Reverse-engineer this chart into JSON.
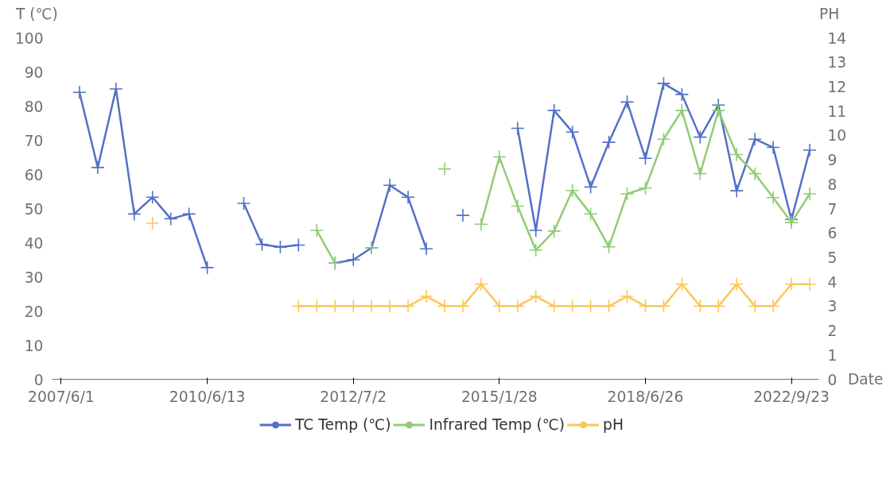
{
  "chart_data": {
    "type": "line",
    "xlabel": "Date",
    "ylabel": "T (℃)",
    "y2label": "PH",
    "categories": [
      "2007/6/1",
      null,
      null,
      null,
      null,
      null,
      null,
      null,
      "2010/6/13",
      null,
      null,
      null,
      null,
      null,
      null,
      null,
      "2012/7/2",
      null,
      null,
      null,
      null,
      null,
      null,
      null,
      "2015/1/28",
      null,
      null,
      null,
      null,
      null,
      null,
      null,
      "2018/6/26",
      null,
      null,
      null,
      null,
      null,
      null,
      null,
      "2022/9/23",
      null
    ],
    "series": [
      {
        "name": "TC Temp (℃)",
        "color": "#5470c6",
        "values": [
          null,
          84,
          62,
          85,
          48.4,
          53.3,
          47,
          48.4,
          32.7,
          null,
          51.5,
          39.5,
          38.7,
          39.3,
          null,
          34,
          35,
          38.5,
          56.8,
          53.3,
          38.2,
          null,
          48,
          null,
          null,
          73.5,
          43.6,
          78.7,
          72.4,
          56.3,
          69.4,
          81.2,
          64.7,
          86.6,
          83.4,
          70.9,
          80.3,
          55.2,
          70.3,
          67.9,
          46.8,
          67.1
        ]
      },
      {
        "name": "Infrared Temp (℃)",
        "color": "#91cc75",
        "values": [
          null,
          null,
          null,
          null,
          null,
          null,
          null,
          null,
          null,
          null,
          null,
          null,
          null,
          null,
          43.6,
          34,
          null,
          38.5,
          null,
          null,
          null,
          61.6,
          null,
          45.4,
          65.1,
          50.7,
          37.8,
          43.4,
          55.3,
          48.4,
          38.8,
          54.3,
          56,
          70.3,
          78.7,
          60.2,
          78.7,
          65.8,
          60.2,
          53.2,
          45.9,
          54.3
        ]
      },
      {
        "name": "pH",
        "color": "#fac858",
        "axis": "y2",
        "values": [
          null,
          null,
          null,
          null,
          null,
          6.4,
          null,
          null,
          null,
          null,
          null,
          null,
          null,
          3,
          3,
          3,
          3,
          3,
          3,
          3,
          3.4,
          3,
          3,
          3.9,
          3,
          3,
          3.4,
          3,
          3,
          3,
          3,
          3.4,
          3,
          3,
          3.9,
          3,
          3,
          3.9,
          3,
          3,
          3.9,
          3.9
        ]
      }
    ],
    "ylim": [
      0,
      100
    ],
    "yticks": [
      0,
      10,
      20,
      30,
      40,
      50,
      60,
      70,
      80,
      90,
      100
    ],
    "y2lim": [
      0,
      14
    ],
    "y2ticks": [
      0,
      1,
      2,
      3,
      4,
      5,
      6,
      7,
      8,
      9,
      10,
      11,
      12,
      13,
      14
    ],
    "marker": "cross",
    "line_style": "solid",
    "grid": false,
    "legend": "bottom"
  }
}
